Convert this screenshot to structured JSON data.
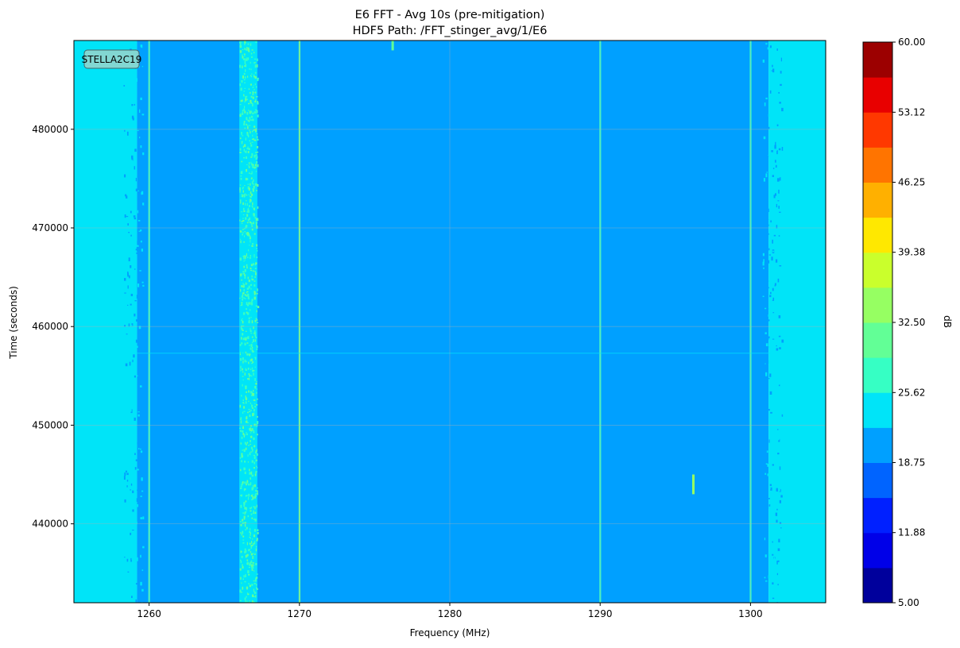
{
  "chart_data": {
    "type": "heatmap",
    "title": "E6 FFT - Avg 10s (pre-mitigation)",
    "subtitle": "HDF5 Path: /FFT_stinger_avg/1/E6",
    "xlabel": "Frequency (MHz)",
    "ylabel": "Time (seconds)",
    "xlim": [
      1255,
      1305
    ],
    "ylim": [
      432000,
      489000
    ],
    "x_ticks": [
      1260,
      1270,
      1280,
      1290,
      1300
    ],
    "y_ticks": [
      440000,
      450000,
      460000,
      470000,
      480000
    ],
    "grid": true,
    "annotation": "STELLA2C19",
    "colorbar": {
      "label": "dB",
      "min": 5.0,
      "max": 60.0,
      "levels": 14,
      "ticks": [
        "5.00",
        "11.88",
        "18.75",
        "25.62",
        "32.50",
        "39.38",
        "46.25",
        "53.12",
        "60.00"
      ],
      "colors": [
        "#00009c",
        "#0000e8",
        "#0020ff",
        "#0064ff",
        "#00a0ff",
        "#00e4f8",
        "#36ffc4",
        "#62ff96",
        "#96ff62",
        "#caff2c",
        "#ffe800",
        "#ffb000",
        "#ff7400",
        "#ff3800",
        "#e80000",
        "#9c0000"
      ]
    },
    "regions": [
      {
        "x_from": 1255,
        "x_to": 1259.2,
        "level_db": 23.5
      },
      {
        "x_from": 1259.2,
        "x_to": 1301.2,
        "level_db": 20.0
      },
      {
        "x_from": 1301.2,
        "x_to": 1305,
        "level_db": 23.5
      }
    ],
    "features": [
      {
        "kind": "band",
        "x_from": 1266.0,
        "x_to": 1267.2,
        "level_db": 27.0
      },
      {
        "kind": "line",
        "x": 1260.0,
        "level_db": 26.0
      },
      {
        "kind": "line",
        "x": 1270.0,
        "level_db": 31.0
      },
      {
        "kind": "line",
        "x": 1290.0,
        "level_db": 27.0
      },
      {
        "kind": "line",
        "x": 1300.0,
        "level_db": 26.0
      },
      {
        "kind": "spot",
        "x": 1296.2,
        "y_from": 443000,
        "y_to": 445000,
        "level_db": 36.0
      },
      {
        "kind": "spot",
        "x": 1276.2,
        "y_from": 488000,
        "y_to": 489000,
        "level_db": 30.0
      }
    ]
  }
}
